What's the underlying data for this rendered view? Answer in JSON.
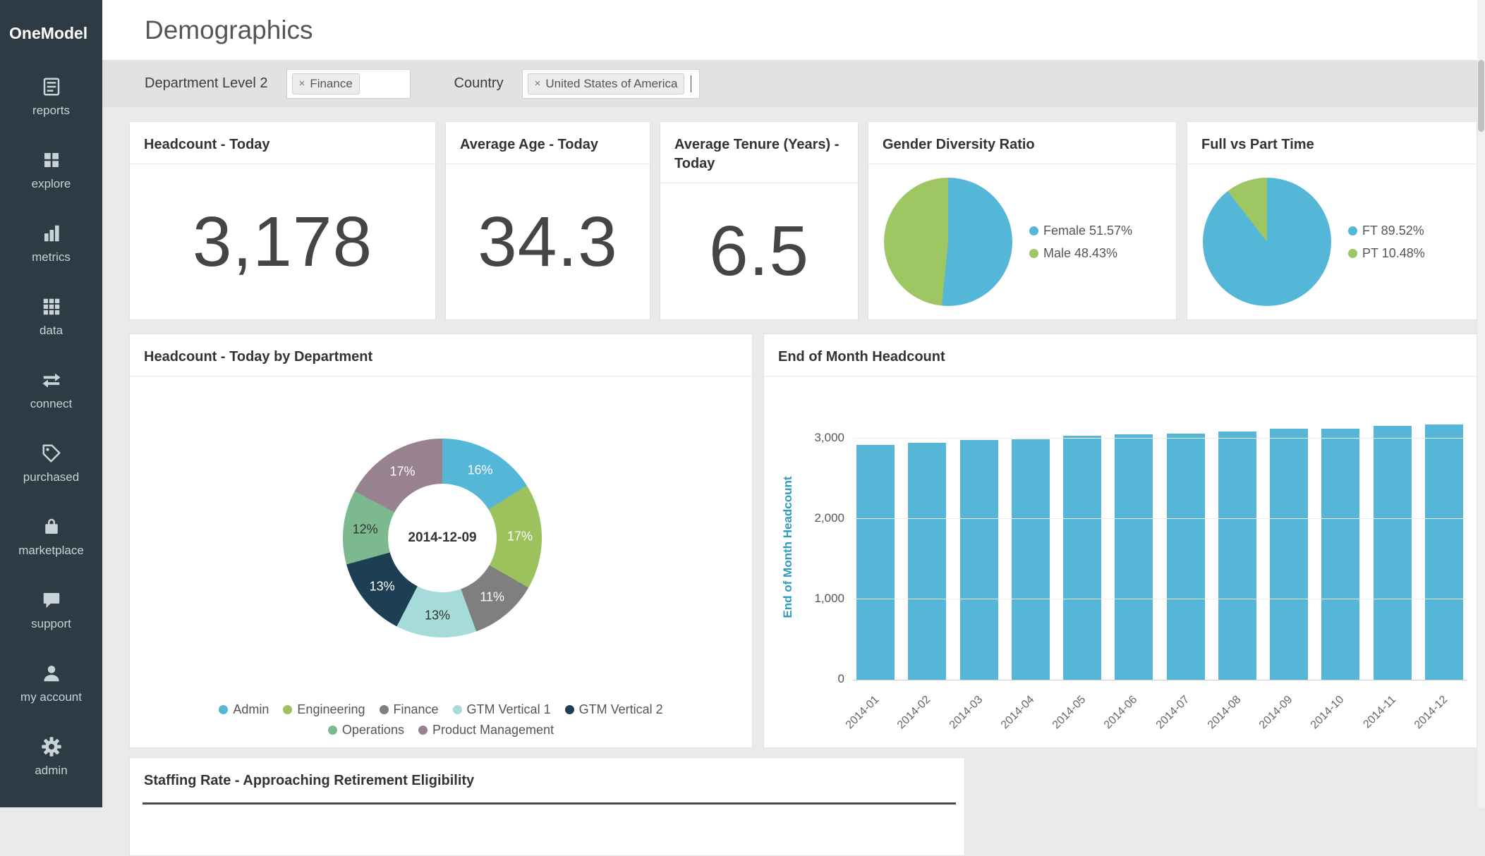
{
  "brand": "OneModel",
  "header": {
    "title": "Demographics"
  },
  "sidebar": {
    "items": [
      {
        "label": "reports"
      },
      {
        "label": "explore"
      },
      {
        "label": "metrics"
      },
      {
        "label": "data"
      },
      {
        "label": "connect"
      },
      {
        "label": "purchased"
      },
      {
        "label": "marketplace"
      },
      {
        "label": "support"
      },
      {
        "label": "my account"
      },
      {
        "label": "admin"
      }
    ]
  },
  "filters": {
    "items": [
      {
        "label": "Department Level 2",
        "chips": [
          {
            "remove": "×",
            "text": "Finance"
          }
        ]
      },
      {
        "label": "Country",
        "chips": [
          {
            "remove": "×",
            "text": "United States of America"
          }
        ]
      }
    ]
  },
  "cards": {
    "headcount": {
      "title": "Headcount - Today",
      "value": "3,178"
    },
    "avg_age": {
      "title": "Average Age - Today",
      "value": "34.3"
    },
    "avg_tenure": {
      "title": "Average Tenure (Years) - Today",
      "value": "6.5"
    },
    "gender": {
      "title": "Gender Diversity Ratio"
    },
    "ftpt": {
      "title": "Full vs Part Time"
    },
    "dept": {
      "title": "Headcount - Today by Department",
      "center_label": "2014-12-09"
    },
    "eom": {
      "title": "End of Month Headcount"
    },
    "staffing": {
      "title": "Staffing Rate - Approaching Retirement Eligibility"
    }
  },
  "chart_data": [
    {
      "id": "gender_pie",
      "type": "pie",
      "title": "Gender Diversity Ratio",
      "slices": [
        {
          "label": "Female",
          "pct": 51.57,
          "color": "#54b7d8",
          "legend": "Female 51.57%"
        },
        {
          "label": "Male",
          "pct": 48.43,
          "color": "#9ec662",
          "legend": "Male 48.43%"
        }
      ],
      "legend_position": "right"
    },
    {
      "id": "ftpt_pie",
      "type": "pie",
      "title": "Full vs Part Time",
      "slices": [
        {
          "label": "FT",
          "pct": 89.52,
          "color": "#54b7d8",
          "legend": "FT 89.52%"
        },
        {
          "label": "PT",
          "pct": 10.48,
          "color": "#9ec662",
          "legend": "PT 10.48%"
        }
      ],
      "legend_position": "right"
    },
    {
      "id": "dept_donut",
      "type": "pie",
      "subtype": "donut",
      "title": "Headcount - Today by Department",
      "center_label": "2014-12-09",
      "slices": [
        {
          "label": "Admin",
          "pct": 16,
          "text": "16%",
          "color": "#54b7d8",
          "textColor": "#ffffff",
          "legend": "Admin"
        },
        {
          "label": "Engineering",
          "pct": 17,
          "text": "17%",
          "color": "#9cc25e",
          "textColor": "#ffffff",
          "legend": "Engineering"
        },
        {
          "label": "Finance",
          "pct": 11,
          "text": "11%",
          "color": "#7f7f7f",
          "textColor": "#ffffff",
          "legend": "Finance"
        },
        {
          "label": "GTM Vertical 1",
          "pct": 13,
          "text": "13%",
          "color": "#a5dbd9",
          "textColor": "#333333",
          "legend": "GTM Vertical 1"
        },
        {
          "label": "GTM Vertical 2",
          "pct": 13,
          "text": "13%",
          "color": "#1d3e53",
          "textColor": "#ffffff",
          "legend": "GTM Vertical 2"
        },
        {
          "label": "Operations",
          "pct": 12,
          "text": "12%",
          "color": "#7db98f",
          "textColor": "#333333",
          "legend": "Operations"
        },
        {
          "label": "Product Management",
          "pct": 17,
          "text": "17%",
          "color": "#99828f",
          "textColor": "#ffffff",
          "legend": "Product Management"
        }
      ],
      "legend_position": "bottom",
      "legend_row_split": 5
    },
    {
      "id": "eom_bars",
      "type": "bar",
      "title": "End of Month Headcount",
      "ylabel": "End of Month Headcount",
      "categories": [
        "2014-01",
        "2014-02",
        "2014-03",
        "2014-04",
        "2014-05",
        "2014-06",
        "2014-07",
        "2014-08",
        "2014-09",
        "2014-10",
        "2014-11",
        "2014-12"
      ],
      "values": [
        2920,
        2950,
        2980,
        2995,
        3035,
        3050,
        3065,
        3090,
        3120,
        3125,
        3160,
        3178
      ],
      "yticks": [
        {
          "v": 0,
          "label": "0"
        },
        {
          "v": 1000,
          "label": "1,000"
        },
        {
          "v": 2000,
          "label": "2,000"
        },
        {
          "v": 3000,
          "label": "3,000"
        }
      ],
      "ylim": [
        0,
        3390
      ],
      "bar_color": "#56b6d8",
      "xtick_rotation": -45,
      "grid": true
    }
  ]
}
